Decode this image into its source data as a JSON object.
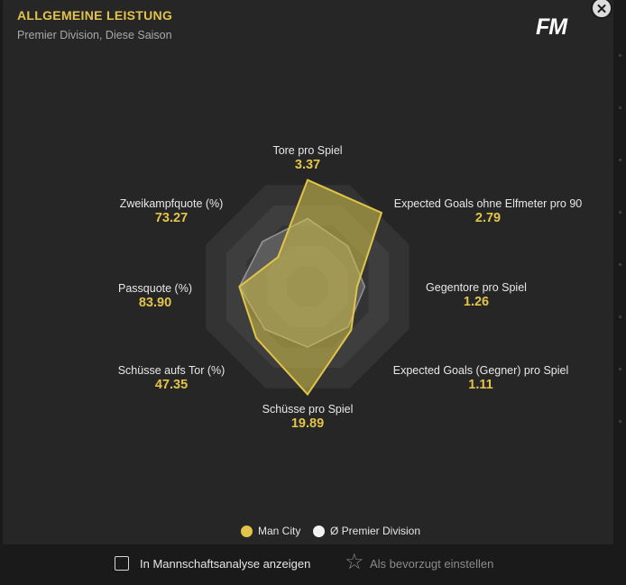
{
  "header": {
    "title": "ALLGEMEINE LEISTUNG",
    "subtitle": "Premier Division, Diese Saison",
    "logo_text": "FM",
    "close_icon": "close-icon"
  },
  "colors": {
    "accent": "#e2c44a",
    "team_fill": "#d4c24a",
    "league_fill": "#c9c9c9",
    "web_ring_dark": "#333333",
    "web_ring_light": "#3e3e3e"
  },
  "chart_data": {
    "type": "radar",
    "metrics": [
      {
        "label": "Tore pro Spiel",
        "value": "3.37"
      },
      {
        "label": "Expected Goals ohne Elfmeter pro 90",
        "value": "2.79"
      },
      {
        "label": "Gegentore pro Spiel",
        "value": "1.26"
      },
      {
        "label": "Expected Goals (Gegner) pro Spiel",
        "value": "1.11"
      },
      {
        "label": "Schüsse pro Spiel",
        "value": "19.89"
      },
      {
        "label": "Schüsse aufs Tor (%)",
        "value": "47.35"
      },
      {
        "label": "Passquote (%)",
        "value": "83.90"
      },
      {
        "label": "Zweikampfquote (%)",
        "value": "73.27"
      }
    ],
    "series": [
      {
        "name": "Man City",
        "relative": [
          0.97,
          0.95,
          0.45,
          0.56,
          0.98,
          0.66,
          0.62,
          0.38
        ]
      },
      {
        "name": "Ø Premier Division",
        "relative": [
          0.62,
          0.52,
          0.52,
          0.52,
          0.55,
          0.55,
          0.62,
          0.58
        ]
      }
    ]
  },
  "legend": {
    "team": "Man City",
    "league": "Ø Premier Division"
  },
  "footer": {
    "checkbox_label": "In Mannschaftsanalyse anzeigen",
    "checkbox_checked": false,
    "favourite_label": "Als bevorzugt einstellen",
    "favourite_icon": "star-icon"
  }
}
